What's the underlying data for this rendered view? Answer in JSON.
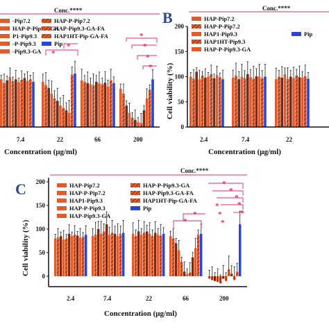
{
  "colors": {
    "orange": "#e45a2a",
    "brown": "#7a2a12",
    "blue": "#2a45d6",
    "pink": "#e4246a",
    "axis": "#111111"
  },
  "chart_data": [
    {
      "panel": "A",
      "type": "bar",
      "ylabel": "",
      "xlabel": "Concentration (μg/ml)",
      "categories": [
        "7.4",
        "22",
        "66",
        "200"
      ],
      "ylim": [
        0,
        150
      ],
      "legend_header": "Conc.****",
      "legend": [
        "-Pip7.2",
        "HAP-P-Pip7.2",
        "HAP-P-Pip9.3-GA",
        "HAP-Pip9.3-GA-FA",
        "P1-Pip9.3",
        "HAP1HT-Pip-GA-FA",
        "-P-Pip9.3",
        "Pip",
        "-Pip9.3-GA"
      ],
      "series_values": [
        [
          100,
          95,
          98,
          80
        ],
        [
          92,
          88,
          95,
          70
        ],
        [
          98,
          82,
          92,
          45
        ],
        [
          105,
          70,
          90,
          30
        ],
        [
          96,
          60,
          88,
          20
        ],
        [
          100,
          55,
          95,
          15
        ],
        [
          94,
          45,
          92,
          10
        ],
        [
          99,
          40,
          90,
          8
        ],
        [
          103,
          35,
          93,
          35
        ],
        [
          97,
          30,
          85,
          60
        ],
        [
          100,
          110,
          98,
          78
        ],
        [
          95,
          112,
          92,
          100
        ]
      ],
      "annotations": [
        "*",
        "*",
        "*",
        "*",
        "*",
        "*"
      ]
    },
    {
      "panel": "B",
      "type": "bar",
      "ylabel": "Cell viability (%)",
      "xlabel": "Concentration (μg/ml)",
      "categories": [
        "2.4",
        "7.4",
        "22"
      ],
      "ylim": [
        0,
        200
      ],
      "yticks": [
        0,
        50,
        100,
        150,
        200
      ],
      "legend_header": "Conc.****",
      "legend": [
        "HAP-Pip7.2",
        "HAP-P-Pip7.2",
        "HAP1-Pip9.3",
        "HAP1HT-Pip9.3",
        "HAP-P-Pip9.3-GA",
        "Pip"
      ],
      "series_values": [
        [
          100,
          98,
          95
        ],
        [
          96,
          102,
          100
        ],
        [
          110,
          95,
          98
        ],
        [
          95,
          100,
          105
        ],
        [
          102,
          97,
          96
        ],
        [
          98,
          105,
          100
        ],
        [
          100,
          99,
          97
        ],
        [
          105,
          96,
          102
        ],
        [
          97,
          101,
          99
        ],
        [
          103,
          100,
          98
        ],
        [
          99,
          97,
          101
        ],
        [
          95,
          100,
          96
        ]
      ]
    },
    {
      "panel": "C",
      "type": "bar",
      "ylabel": "Cell viability (%)",
      "xlabel": "Concentration (μg/ml)",
      "categories": [
        "2.4",
        "7.4",
        "22",
        "66",
        "200"
      ],
      "ylim": [
        -20,
        200
      ],
      "yticks": [
        0,
        50,
        100,
        150,
        200
      ],
      "legend_header": "Conc.****",
      "legend": [
        "HAP-Pip7.2",
        "HAP-P-Pip9.3-GA",
        "HAP-P-Pip7.2",
        "HAP-Pip9.3-GA-FA",
        "HAP1-Pip9.3",
        "HAP1HT-Pip-GA-FA",
        "HAP-P-Pip9.3",
        "Pip",
        "HAP-Pip9.3-GA"
      ],
      "series_values": [
        [
          80,
          85,
          90,
          85,
          -5
        ],
        [
          82,
          88,
          85,
          80,
          -8
        ],
        [
          85,
          100,
          95,
          70,
          -10
        ],
        [
          78,
          90,
          88,
          55,
          -12
        ],
        [
          80,
          95,
          92,
          30,
          -15
        ],
        [
          90,
          110,
          95,
          10,
          -5
        ],
        [
          85,
          88,
          90,
          5,
          -10
        ],
        [
          88,
          92,
          85,
          8,
          15
        ],
        [
          86,
          90,
          92,
          40,
          5
        ],
        [
          82,
          85,
          88,
          60,
          -8
        ],
        [
          84,
          90,
          86,
          88,
          10
        ],
        [
          88,
          92,
          90,
          90,
          110
        ]
      ],
      "annotations": [
        "*",
        "*",
        "*",
        "*",
        "*",
        "*",
        "*",
        "*",
        "*",
        "*"
      ]
    }
  ]
}
